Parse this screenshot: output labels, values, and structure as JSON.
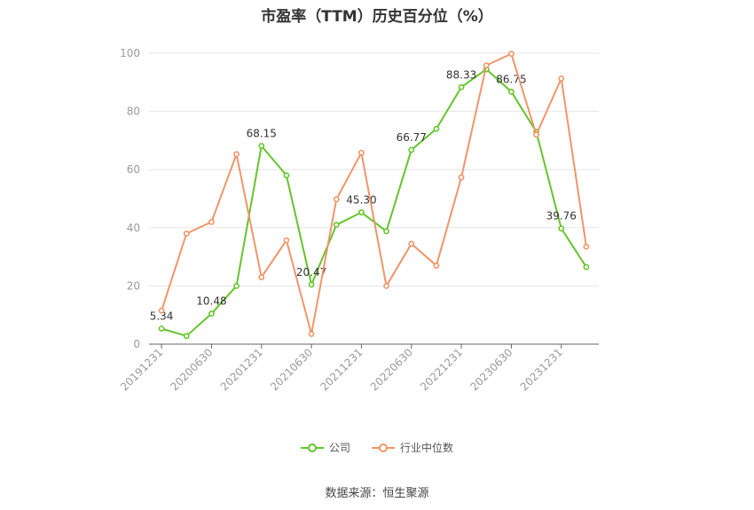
{
  "chart_data": {
    "type": "line",
    "title": "市盈率（TTM）历史百分位（%）",
    "xlabel": "",
    "ylabel": "",
    "ylim": [
      0,
      100
    ],
    "yticks": [
      0,
      20,
      40,
      60,
      80,
      100
    ],
    "x": [
      "20191231",
      "20200331",
      "20200630",
      "20200930",
      "20201231",
      "20210331",
      "20210630",
      "20210930",
      "20211231",
      "20220331",
      "20220630",
      "20220930",
      "20221231",
      "20230331",
      "20230630",
      "20230930",
      "20231231",
      "20240331"
    ],
    "x_tick_labels": [
      "20191231",
      "20200630",
      "20201231",
      "20210630",
      "20211231",
      "20220630",
      "20221231",
      "20230630",
      "20231231"
    ],
    "series": [
      {
        "name": "公司",
        "color": "#66c42b",
        "values": [
          5.34,
          2.8,
          10.48,
          20.0,
          68.15,
          58.0,
          20.47,
          41.0,
          45.3,
          38.8,
          66.77,
          74.0,
          88.33,
          94.5,
          86.75,
          73.0,
          39.76,
          26.5
        ],
        "labels": {
          "0": "5.34",
          "2": "10.48",
          "4": "68.15",
          "6": "20.47",
          "8": "45.30",
          "10": "66.77",
          "12": "88.33",
          "14": "86.75",
          "16": "39.76"
        }
      },
      {
        "name": "行业中位数",
        "color": "#f0956a",
        "values": [
          11.5,
          38.0,
          42.0,
          65.3,
          23.0,
          35.7,
          3.5,
          49.8,
          65.8,
          20.0,
          34.5,
          27.0,
          57.3,
          95.8,
          99.8,
          72.0,
          91.3,
          33.5
        ],
        "labels": {}
      }
    ],
    "legend_position": "bottom",
    "grid": true
  },
  "source": "数据来源：恒生聚源"
}
